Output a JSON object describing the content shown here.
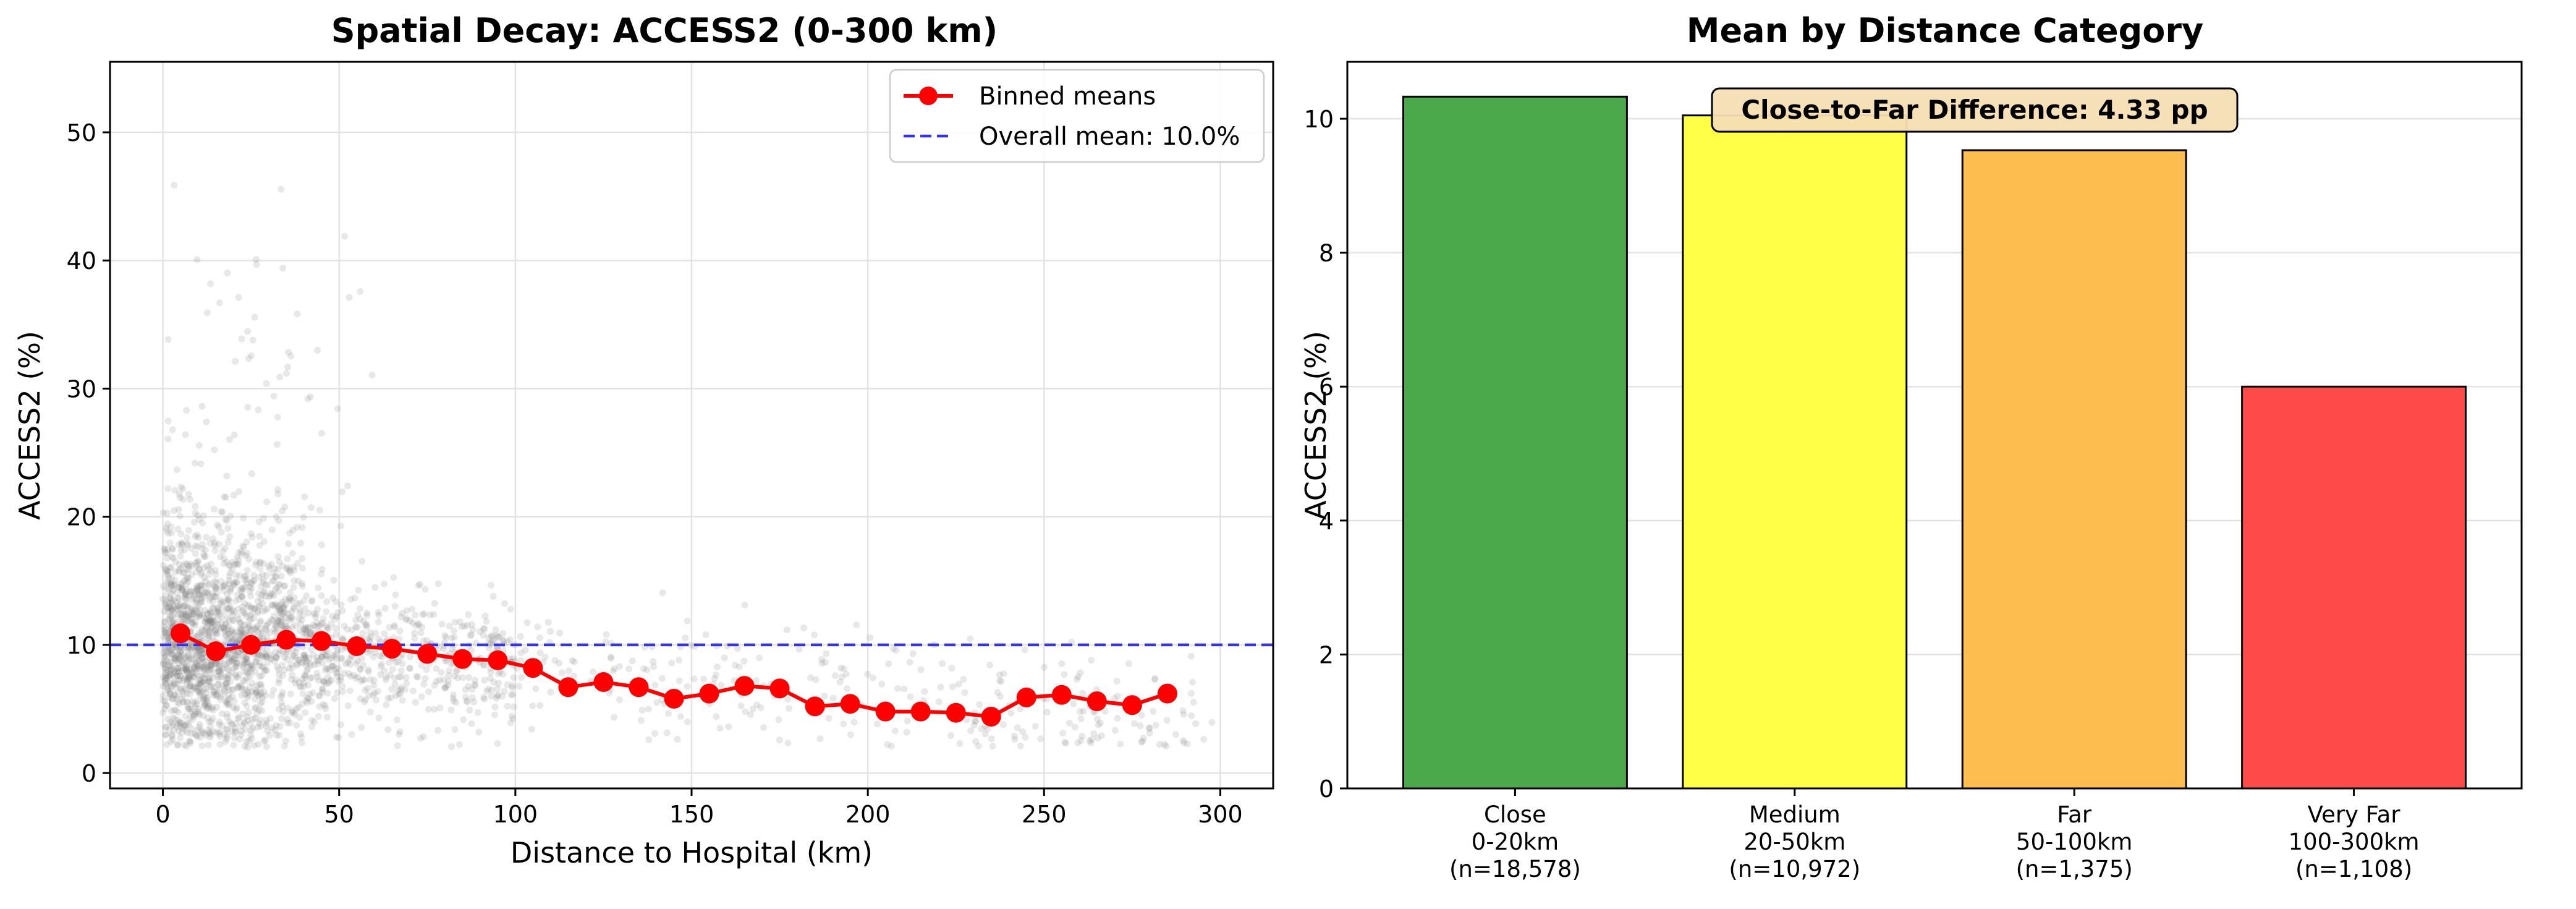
{
  "chart_data": [
    {
      "type": "scatter",
      "title": "Spatial Decay: ACCESS2 (0-300 km)",
      "xlabel": "Distance to Hospital (km)",
      "ylabel": "ACCESS2 (%)",
      "xlim": [
        -15,
        315
      ],
      "ylim": [
        -1.2,
        55.5
      ],
      "xticks": [
        "0",
        "50",
        "100",
        "150",
        "200",
        "250",
        "300"
      ],
      "yticks": [
        "0",
        "10",
        "20",
        "30",
        "40",
        "50"
      ],
      "xtick_values": [
        0,
        50,
        100,
        150,
        200,
        250,
        300
      ],
      "ytick_values": [
        0,
        10,
        20,
        30,
        40,
        50
      ],
      "grid": true,
      "legend_position": "top-right",
      "legend": [
        "Binned means",
        "Overall mean: 10.0%"
      ],
      "overall_mean": 10.0,
      "scatter_color": "#808080",
      "series": [
        {
          "name": "Binned means",
          "color": "#ff0000",
          "x": [
            5,
            15,
            25,
            35,
            45,
            55,
            65,
            75,
            85,
            95,
            105,
            115,
            125,
            135,
            145,
            155,
            165,
            175,
            185,
            195,
            205,
            215,
            225,
            235,
            245,
            255,
            265,
            275,
            285
          ],
          "y": [
            10.9,
            9.5,
            10.0,
            10.4,
            10.3,
            9.9,
            9.7,
            9.3,
            8.9,
            8.8,
            8.2,
            6.7,
            7.1,
            6.7,
            5.8,
            6.2,
            6.8,
            6.6,
            5.2,
            5.4,
            4.8,
            4.8,
            4.7,
            4.4,
            5.9,
            6.1,
            5.6,
            5.3,
            6.2
          ]
        }
      ]
    },
    {
      "type": "bar",
      "title": "Mean by Distance Category",
      "ylabel": "ACCESS2 (%)",
      "ylim": [
        0,
        10.85
      ],
      "yticks": [
        "0",
        "2",
        "4",
        "6",
        "8",
        "10"
      ],
      "ytick_values": [
        0,
        2,
        4,
        6,
        8,
        10
      ],
      "categories": [
        [
          "Close",
          "0-20km",
          "(n=18,578)"
        ],
        [
          "Medium",
          "20-50km",
          "(n=10,972)"
        ],
        [
          "Far",
          "50-100km",
          "(n=1,375)"
        ],
        [
          "Very Far",
          "100-300km",
          "(n=1,108)"
        ]
      ],
      "values": [
        10.33,
        10.05,
        9.53,
        6.0
      ],
      "colors": [
        "#4ba84b",
        "#ffff47",
        "#fdbd4f",
        "#ff4a4a"
      ],
      "annotation": "Close-to-Far Difference: 4.33 pp",
      "grid": "y"
    }
  ]
}
